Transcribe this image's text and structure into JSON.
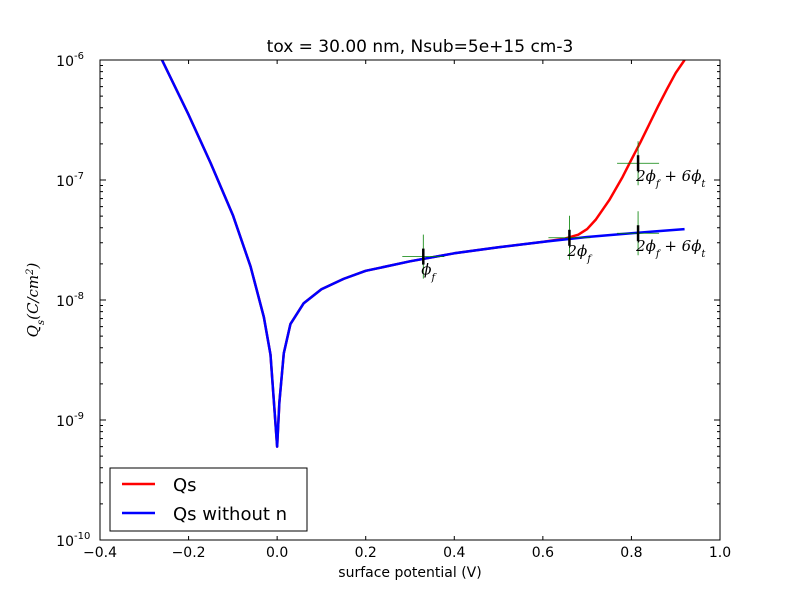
{
  "chart_data": {
    "type": "line",
    "title": "tox = 30.00 nm, Nsub=5e+15 cm-3",
    "xlabel": "surface potential (V)",
    "ylabel": "Q_s(C/cm^2)",
    "xlim": [
      -0.4,
      1.0
    ],
    "ylim": [
      1e-10,
      1e-06
    ],
    "yscale": "log",
    "xticks": [
      "−0.4",
      "−0.2",
      "0.0",
      "0.2",
      "0.4",
      "0.6",
      "0.8",
      "1.0"
    ],
    "xtick_values": [
      -0.4,
      -0.2,
      0.0,
      0.2,
      0.4,
      0.6,
      0.8,
      1.0
    ],
    "yticks": [
      {
        "base": "10",
        "exp": "-10",
        "value": 1e-10
      },
      {
        "base": "10",
        "exp": "-9",
        "value": 1e-09
      },
      {
        "base": "10",
        "exp": "-8",
        "value": 1e-08
      },
      {
        "base": "10",
        "exp": "-7",
        "value": 1e-07
      },
      {
        "base": "10",
        "exp": "-6",
        "value": 1e-06
      }
    ],
    "legend": {
      "placement": "lower-left"
    },
    "series": [
      {
        "name": "Qs",
        "color": "#ff0000",
        "x": [
          -0.26,
          -0.2,
          -0.15,
          -0.1,
          -0.06,
          -0.03,
          -0.015,
          0.0,
          0.005,
          0.015,
          0.03,
          0.06,
          0.1,
          0.15,
          0.2,
          0.3,
          0.4,
          0.5,
          0.6,
          0.65,
          0.68,
          0.7,
          0.72,
          0.75,
          0.78,
          0.8,
          0.82,
          0.84,
          0.86,
          0.88,
          0.9,
          0.92
        ],
        "y": [
          1e-06,
          3.5e-07,
          1.38e-07,
          5.1e-08,
          1.9e-08,
          7.2e-09,
          3.5e-09,
          6e-10,
          1.4e-09,
          3.6e-09,
          6.3e-09,
          9.4e-09,
          1.23e-08,
          1.5e-08,
          1.75e-08,
          2.1e-08,
          2.45e-08,
          2.75e-08,
          3.05e-08,
          3.25e-08,
          3.5e-08,
          3.9e-08,
          4.7e-08,
          6.8e-08,
          1.06e-07,
          1.48e-07,
          2.05e-07,
          2.9e-07,
          4.1e-07,
          5.7e-07,
          7.8e-07,
          1e-06
        ]
      },
      {
        "name": "Qs without n",
        "color": "#0000ff",
        "x": [
          -0.26,
          -0.2,
          -0.15,
          -0.1,
          -0.06,
          -0.03,
          -0.015,
          0.0,
          0.005,
          0.015,
          0.03,
          0.06,
          0.1,
          0.15,
          0.2,
          0.3,
          0.4,
          0.5,
          0.6,
          0.7,
          0.8,
          0.85,
          0.92
        ],
        "y": [
          1e-06,
          3.5e-07,
          1.38e-07,
          5.1e-08,
          1.9e-08,
          7.2e-09,
          3.5e-09,
          6e-10,
          1.4e-09,
          3.6e-09,
          6.3e-09,
          9.4e-09,
          1.23e-08,
          1.5e-08,
          1.75e-08,
          2.1e-08,
          2.45e-08,
          2.75e-08,
          3.05e-08,
          3.35e-08,
          3.6e-08,
          3.72e-08,
          3.9e-08
        ]
      }
    ],
    "annotations": [
      {
        "text": "ϕ_f",
        "parts": [
          {
            "t": "ϕ"
          },
          {
            "t": "f",
            "sub": true
          }
        ],
        "x": 0.33,
        "y": 2.3e-08
      },
      {
        "text": "2ϕ_f",
        "parts": [
          {
            "t": "2ϕ"
          },
          {
            "t": "f",
            "sub": true
          }
        ],
        "x": 0.66,
        "y": 3.3e-08
      },
      {
        "text": "2ϕ_f + 6ϕ_t",
        "parts": [
          {
            "t": "2ϕ"
          },
          {
            "t": "f",
            "sub": true
          },
          {
            "t": " + 6ϕ"
          },
          {
            "t": "t",
            "sub": true
          }
        ],
        "x": 0.815,
        "y": 1.38e-07
      },
      {
        "text": "2ϕ_f + 6ϕ_t",
        "parts": [
          {
            "t": "2ϕ"
          },
          {
            "t": "f",
            "sub": true
          },
          {
            "t": " + 6ϕ"
          },
          {
            "t": "t",
            "sub": true
          }
        ],
        "x": 0.815,
        "y": 3.6e-08
      }
    ]
  }
}
